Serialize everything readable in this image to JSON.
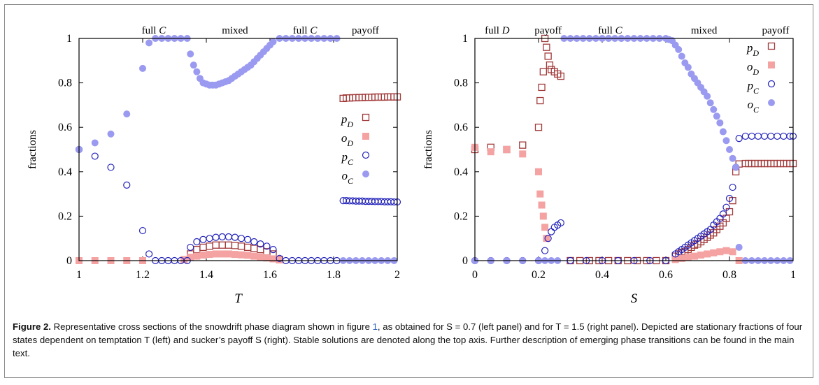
{
  "colors": {
    "pD": "#a23a3a",
    "oD": "#f4a2a2",
    "pC": "#2222bb",
    "oC": "#9a9af0"
  },
  "chart_data": [
    {
      "type": "scatter",
      "xlabel": "T",
      "ylabel": "fractions",
      "xlim": [
        1,
        2
      ],
      "ylim": [
        0,
        1
      ],
      "xticks": [
        "1",
        "1.2",
        "1.4",
        "1.6",
        "1.8",
        "2"
      ],
      "yticks": [
        "0",
        "0.2",
        "0.4",
        "0.6",
        "0.8",
        "1"
      ],
      "grid": false,
      "legend_position": "center-right",
      "top_labels": [
        {
          "text": "full C",
          "x": 1.235
        },
        {
          "text": "mixed",
          "x": 1.49
        },
        {
          "text": "full C",
          "x": 1.71
        },
        {
          "text": "payoff",
          "x": 1.9
        }
      ],
      "series": [
        {
          "name": "p_D",
          "key": "pD",
          "style": "open-square",
          "x": [
            1.35,
            1.37,
            1.39,
            1.41,
            1.43,
            1.45,
            1.47,
            1.49,
            1.51,
            1.53,
            1.55,
            1.57,
            1.59,
            1.61,
            1.63,
            1.83,
            1.84,
            1.85,
            1.86,
            1.87,
            1.88,
            1.89,
            1.9,
            1.91,
            1.92,
            1.93,
            1.94,
            1.95,
            1.96,
            1.97,
            1.98,
            1.99,
            2.0
          ],
          "y": [
            0.03,
            0.05,
            0.06,
            0.065,
            0.07,
            0.07,
            0.07,
            0.068,
            0.065,
            0.06,
            0.055,
            0.05,
            0.04,
            0.03,
            0.005,
            0.73,
            0.732,
            0.732,
            0.733,
            0.733,
            0.734,
            0.734,
            0.735,
            0.735,
            0.735,
            0.736,
            0.736,
            0.736,
            0.736,
            0.737,
            0.737,
            0.737,
            0.737
          ]
        },
        {
          "name": "o_D",
          "key": "oD",
          "style": "filled-square",
          "x": [
            1.0,
            1.05,
            1.1,
            1.15,
            1.2,
            1.33,
            1.35,
            1.37,
            1.39,
            1.41,
            1.43,
            1.45,
            1.47,
            1.49,
            1.51,
            1.53,
            1.55,
            1.57,
            1.59,
            1.61,
            1.63
          ],
          "y": [
            0.0,
            0.0,
            0.0,
            0.0,
            0.0,
            0.005,
            0.015,
            0.02,
            0.025,
            0.028,
            0.03,
            0.03,
            0.03,
            0.028,
            0.026,
            0.024,
            0.02,
            0.016,
            0.012,
            0.008,
            0.003
          ]
        },
        {
          "name": "p_C",
          "key": "pC",
          "style": "open-circle",
          "x": [
            1.0,
            1.05,
            1.1,
            1.15,
            1.2,
            1.22,
            1.24,
            1.26,
            1.28,
            1.3,
            1.32,
            1.34,
            1.35,
            1.37,
            1.39,
            1.41,
            1.43,
            1.45,
            1.47,
            1.49,
            1.51,
            1.53,
            1.55,
            1.57,
            1.59,
            1.61,
            1.63,
            1.65,
            1.67,
            1.69,
            1.71,
            1.73,
            1.75,
            1.77,
            1.79,
            1.81,
            1.83,
            1.84,
            1.85,
            1.86,
            1.87,
            1.88,
            1.89,
            1.9,
            1.91,
            1.92,
            1.93,
            1.94,
            1.95,
            1.96,
            1.97,
            1.98,
            1.99,
            2.0
          ],
          "y": [
            0.5,
            0.47,
            0.42,
            0.34,
            0.135,
            0.03,
            0.0,
            0.0,
            0.0,
            0.0,
            0.0,
            0.0,
            0.06,
            0.085,
            0.095,
            0.1,
            0.105,
            0.107,
            0.107,
            0.105,
            0.1,
            0.095,
            0.085,
            0.075,
            0.065,
            0.05,
            0.01,
            0.0,
            0.0,
            0.0,
            0.0,
            0.0,
            0.0,
            0.0,
            0.0,
            0.0,
            0.27,
            0.27,
            0.269,
            0.269,
            0.268,
            0.268,
            0.268,
            0.267,
            0.267,
            0.267,
            0.266,
            0.266,
            0.266,
            0.265,
            0.265,
            0.265,
            0.264,
            0.264
          ]
        },
        {
          "name": "o_C",
          "key": "oC",
          "style": "filled-circle",
          "x": [
            1.0,
            1.05,
            1.1,
            1.15,
            1.2,
            1.22,
            1.24,
            1.26,
            1.28,
            1.3,
            1.32,
            1.34,
            1.35,
            1.36,
            1.37,
            1.38,
            1.39,
            1.4,
            1.41,
            1.42,
            1.43,
            1.44,
            1.45,
            1.46,
            1.47,
            1.48,
            1.49,
            1.5,
            1.51,
            1.52,
            1.53,
            1.54,
            1.55,
            1.56,
            1.57,
            1.58,
            1.59,
            1.6,
            1.61,
            1.63,
            1.65,
            1.67,
            1.69,
            1.71,
            1.73,
            1.75,
            1.77,
            1.79,
            1.81,
            1.83,
            1.85,
            1.87,
            1.89,
            1.91,
            1.93,
            1.95,
            1.97,
            1.99
          ],
          "y": [
            0.5,
            0.53,
            0.57,
            0.66,
            0.865,
            0.98,
            1.0,
            1.0,
            1.0,
            1.0,
            1.0,
            1.0,
            0.93,
            0.88,
            0.85,
            0.82,
            0.8,
            0.795,
            0.79,
            0.79,
            0.79,
            0.795,
            0.8,
            0.805,
            0.81,
            0.82,
            0.83,
            0.84,
            0.85,
            0.86,
            0.87,
            0.88,
            0.895,
            0.91,
            0.925,
            0.94,
            0.955,
            0.97,
            0.985,
            1.0,
            1.0,
            1.0,
            1.0,
            1.0,
            1.0,
            1.0,
            1.0,
            1.0,
            1.0,
            0.0,
            0.0,
            0.0,
            0.0,
            0.0,
            0.0,
            0.0,
            0.0,
            0.0
          ]
        }
      ]
    },
    {
      "type": "scatter",
      "xlabel": "S",
      "ylabel": "fractions",
      "xlim": [
        0,
        1
      ],
      "ylim": [
        0,
        1
      ],
      "xticks": [
        "0",
        "0.2",
        "0.4",
        "0.6",
        "0.8",
        "1"
      ],
      "yticks": [
        "0",
        "0.2",
        "0.4",
        "0.6",
        "0.8",
        "1"
      ],
      "grid": false,
      "legend_position": "top-right",
      "top_labels": [
        {
          "text": "full D",
          "x": 0.07
        },
        {
          "text": "payoff",
          "x": 0.23
        },
        {
          "text": "full C",
          "x": 0.425
        },
        {
          "text": "mixed",
          "x": 0.72
        },
        {
          "text": "payoff",
          "x": 0.945
        }
      ],
      "series": [
        {
          "name": "p_D",
          "key": "pD",
          "style": "open-square",
          "x": [
            0.0,
            0.05,
            0.1,
            0.15,
            0.2,
            0.205,
            0.21,
            0.215,
            0.22,
            0.225,
            0.23,
            0.235,
            0.24,
            0.25,
            0.26,
            0.27,
            0.3,
            0.33,
            0.36,
            0.39,
            0.42,
            0.45,
            0.48,
            0.51,
            0.54,
            0.57,
            0.6,
            0.63,
            0.64,
            0.65,
            0.66,
            0.67,
            0.68,
            0.69,
            0.7,
            0.71,
            0.72,
            0.73,
            0.74,
            0.75,
            0.76,
            0.77,
            0.78,
            0.79,
            0.8,
            0.81,
            0.82,
            0.83,
            0.85,
            0.86,
            0.87,
            0.88,
            0.89,
            0.9,
            0.91,
            0.92,
            0.93,
            0.94,
            0.95,
            0.96,
            0.97,
            0.98,
            0.99,
            1.0
          ],
          "y": [
            0.5,
            0.51,
            0.5,
            0.52,
            0.6,
            0.72,
            0.78,
            0.85,
            1.0,
            0.96,
            0.92,
            0.88,
            0.86,
            0.85,
            0.84,
            0.83,
            0.0,
            0.0,
            0.0,
            0.0,
            0.0,
            0.0,
            0.0,
            0.0,
            0.0,
            0.0,
            0.0,
            0.02,
            0.03,
            0.035,
            0.04,
            0.05,
            0.06,
            0.07,
            0.075,
            0.085,
            0.095,
            0.105,
            0.115,
            0.125,
            0.14,
            0.155,
            0.17,
            0.19,
            0.22,
            0.27,
            0.4,
            0.435,
            0.437,
            0.437,
            0.437,
            0.437,
            0.437,
            0.437,
            0.437,
            0.437,
            0.437,
            0.437,
            0.437,
            0.437,
            0.437,
            0.437,
            0.437,
            0.437
          ]
        },
        {
          "name": "o_D",
          "key": "oD",
          "style": "filled-square",
          "x": [
            0.0,
            0.05,
            0.1,
            0.15,
            0.2,
            0.205,
            0.21,
            0.215,
            0.22,
            0.225,
            0.63,
            0.65,
            0.67,
            0.69,
            0.71,
            0.73,
            0.75,
            0.77,
            0.79,
            0.81,
            0.83
          ],
          "y": [
            0.51,
            0.49,
            0.5,
            0.48,
            0.4,
            0.3,
            0.25,
            0.2,
            0.15,
            0.1,
            0.005,
            0.01,
            0.015,
            0.02,
            0.025,
            0.03,
            0.035,
            0.04,
            0.045,
            0.04,
            0.0
          ]
        },
        {
          "name": "p_C",
          "key": "pC",
          "style": "open-circle",
          "x": [
            0.0,
            0.05,
            0.1,
            0.15,
            0.2,
            0.22,
            0.23,
            0.24,
            0.25,
            0.26,
            0.27,
            0.3,
            0.35,
            0.4,
            0.45,
            0.5,
            0.55,
            0.6,
            0.63,
            0.64,
            0.65,
            0.66,
            0.67,
            0.68,
            0.69,
            0.7,
            0.71,
            0.72,
            0.73,
            0.74,
            0.75,
            0.76,
            0.77,
            0.78,
            0.79,
            0.8,
            0.81,
            0.82,
            0.83,
            0.85,
            0.87,
            0.89,
            0.91,
            0.93,
            0.95,
            0.97,
            0.99,
            1.0
          ],
          "y": [
            0.0,
            0.0,
            0.0,
            0.0,
            0.0,
            0.045,
            0.1,
            0.13,
            0.15,
            0.16,
            0.17,
            0.0,
            0.0,
            0.0,
            0.0,
            0.0,
            0.0,
            0.0,
            0.03,
            0.04,
            0.05,
            0.06,
            0.07,
            0.08,
            0.09,
            0.1,
            0.11,
            0.12,
            0.13,
            0.14,
            0.16,
            0.175,
            0.19,
            0.21,
            0.24,
            0.28,
            0.33,
            0.42,
            0.55,
            0.56,
            0.56,
            0.56,
            0.56,
            0.56,
            0.56,
            0.56,
            0.56,
            0.56
          ]
        },
        {
          "name": "o_C",
          "key": "oC",
          "style": "filled-circle",
          "x": [
            0.0,
            0.05,
            0.1,
            0.15,
            0.2,
            0.22,
            0.24,
            0.26,
            0.28,
            0.3,
            0.32,
            0.34,
            0.36,
            0.38,
            0.4,
            0.42,
            0.44,
            0.46,
            0.48,
            0.5,
            0.52,
            0.54,
            0.56,
            0.58,
            0.6,
            0.61,
            0.62,
            0.63,
            0.64,
            0.65,
            0.66,
            0.67,
            0.68,
            0.69,
            0.7,
            0.71,
            0.72,
            0.73,
            0.74,
            0.75,
            0.76,
            0.77,
            0.78,
            0.79,
            0.8,
            0.81,
            0.82,
            0.83,
            0.85,
            0.87,
            0.89,
            0.91,
            0.93,
            0.95,
            0.97,
            0.99
          ],
          "y": [
            0.0,
            0.0,
            0.0,
            0.0,
            0.0,
            0.0,
            0.0,
            0.0,
            1.0,
            1.0,
            1.0,
            1.0,
            1.0,
            1.0,
            1.0,
            1.0,
            1.0,
            1.0,
            1.0,
            1.0,
            1.0,
            1.0,
            1.0,
            1.0,
            1.0,
            0.995,
            0.99,
            0.97,
            0.95,
            0.92,
            0.89,
            0.87,
            0.84,
            0.82,
            0.8,
            0.78,
            0.76,
            0.74,
            0.71,
            0.68,
            0.65,
            0.62,
            0.58,
            0.54,
            0.5,
            0.46,
            0.42,
            0.06,
            0.0,
            0.0,
            0.0,
            0.0,
            0.0,
            0.0,
            0.0,
            0.0
          ]
        }
      ]
    }
  ],
  "caption": {
    "label": "Figure 2.",
    "text_part1": " Representative cross sections of the snowdrift phase diagram shown in figure ",
    "figref": "1",
    "text_part2": ", as obtained for S = 0.7 (left panel) and for T = 1.5 (right panel). Depicted are stationary fractions of four states dependent on temptation T (left) and sucker’s payoff S (right). Stable solutions are denoted along the top axis. Further description of emerging phase transitions can be found in the main text."
  }
}
